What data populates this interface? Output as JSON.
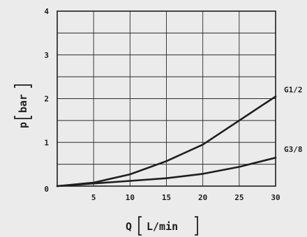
{
  "chart_data": {
    "type": "line",
    "xlabel": "Q",
    "xunit": "L/min",
    "ylabel": "p",
    "yunit": "bar",
    "xlim": [
      0,
      30
    ],
    "ylim": [
      0,
      4
    ],
    "xticks": [
      5,
      10,
      15,
      20,
      25,
      30
    ],
    "yticks": [
      1,
      2,
      3,
      4
    ],
    "origin_label": "0",
    "grid": true,
    "series": [
      {
        "name": "G1/2",
        "x": [
          0,
          5,
          10,
          15,
          20,
          25,
          30
        ],
        "y": [
          0,
          0.08,
          0.27,
          0.57,
          0.95,
          1.5,
          2.05
        ]
      },
      {
        "name": "G3/8",
        "x": [
          0,
          5,
          10,
          15,
          20,
          25,
          30
        ],
        "y": [
          0,
          0.06,
          0.12,
          0.18,
          0.28,
          0.44,
          0.65
        ]
      }
    ]
  }
}
